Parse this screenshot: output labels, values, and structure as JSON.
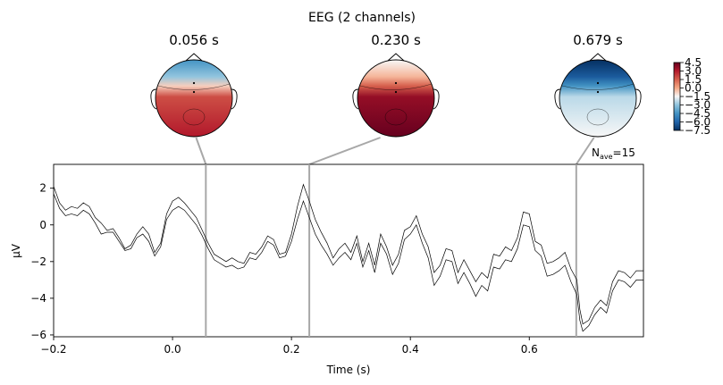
{
  "chart_data": {
    "type": "line",
    "title": "EEG (2 channels)",
    "xlabel": "Time (s)",
    "ylabel": "µV",
    "xlim": [
      -0.2,
      0.792
    ],
    "ylim": [
      -6.1,
      3.3
    ],
    "x_ticks": [
      -0.2,
      0.0,
      0.2,
      0.4,
      0.6
    ],
    "x_tick_labels": [
      "−0.2",
      "0.0",
      "0.2",
      "0.4",
      "0.6"
    ],
    "y_ticks": [
      2,
      0,
      -2,
      -4,
      -6
    ],
    "y_tick_labels": [
      "2",
      "0",
      "−2",
      "−4",
      "−6"
    ],
    "grid": false,
    "nave_label": "N",
    "nave_sub": "ave",
    "nave_value": "=15",
    "line_color": "#000000",
    "marker_line_color": "#a8a8a8",
    "series": [
      {
        "points": [
          [
            -0.2,
            2.1
          ],
          [
            -0.19,
            1.2
          ],
          [
            -0.18,
            0.8
          ],
          [
            -0.17,
            1.0
          ],
          [
            -0.16,
            0.9
          ],
          [
            -0.15,
            1.2
          ],
          [
            -0.14,
            1.0
          ],
          [
            -0.13,
            0.4
          ],
          [
            -0.12,
            0.1
          ],
          [
            -0.11,
            -0.3
          ],
          [
            -0.1,
            -0.2
          ],
          [
            -0.09,
            -0.7
          ],
          [
            -0.08,
            -1.3
          ],
          [
            -0.07,
            -1.1
          ],
          [
            -0.06,
            -0.5
          ],
          [
            -0.05,
            -0.1
          ],
          [
            -0.04,
            -0.5
          ],
          [
            -0.03,
            -1.5
          ],
          [
            -0.02,
            -1.0
          ],
          [
            -0.01,
            0.6
          ],
          [
            0.0,
            1.3
          ],
          [
            0.01,
            1.5
          ],
          [
            0.02,
            1.2
          ],
          [
            0.03,
            0.8
          ],
          [
            0.04,
            0.4
          ],
          [
            0.05,
            -0.3
          ],
          [
            0.06,
            -1.0
          ],
          [
            0.07,
            -1.6
          ],
          [
            0.08,
            -1.8
          ],
          [
            0.09,
            -2.0
          ],
          [
            0.1,
            -1.8
          ],
          [
            0.11,
            -2.0
          ],
          [
            0.12,
            -2.1
          ],
          [
            0.13,
            -1.5
          ],
          [
            0.14,
            -1.6
          ],
          [
            0.15,
            -1.2
          ],
          [
            0.16,
            -0.6
          ],
          [
            0.17,
            -0.8
          ],
          [
            0.18,
            -1.6
          ],
          [
            0.19,
            -1.5
          ],
          [
            0.2,
            -0.5
          ],
          [
            0.21,
            1.0
          ],
          [
            0.22,
            2.2
          ],
          [
            0.23,
            1.3
          ],
          [
            0.24,
            0.3
          ],
          [
            0.25,
            -0.4
          ],
          [
            0.26,
            -1.0
          ],
          [
            0.27,
            -1.8
          ],
          [
            0.28,
            -1.3
          ],
          [
            0.29,
            -1.0
          ],
          [
            0.3,
            -1.5
          ],
          [
            0.31,
            -0.6
          ],
          [
            0.32,
            -2.0
          ],
          [
            0.33,
            -1.0
          ],
          [
            0.34,
            -2.2
          ],
          [
            0.35,
            -0.5
          ],
          [
            0.36,
            -1.2
          ],
          [
            0.37,
            -2.2
          ],
          [
            0.38,
            -1.6
          ],
          [
            0.39,
            -0.3
          ],
          [
            0.4,
            -0.1
          ],
          [
            0.41,
            0.5
          ],
          [
            0.42,
            -0.5
          ],
          [
            0.43,
            -1.2
          ],
          [
            0.44,
            -2.6
          ],
          [
            0.45,
            -2.2
          ],
          [
            0.46,
            -1.3
          ],
          [
            0.47,
            -1.4
          ],
          [
            0.48,
            -2.6
          ],
          [
            0.49,
            -1.9
          ],
          [
            0.5,
            -2.5
          ],
          [
            0.51,
            -3.1
          ],
          [
            0.52,
            -2.6
          ],
          [
            0.53,
            -2.9
          ],
          [
            0.54,
            -1.6
          ],
          [
            0.55,
            -1.7
          ],
          [
            0.56,
            -1.2
          ],
          [
            0.57,
            -1.4
          ],
          [
            0.58,
            -0.7
          ],
          [
            0.59,
            0.7
          ],
          [
            0.6,
            0.6
          ],
          [
            0.61,
            -0.9
          ],
          [
            0.62,
            -1.1
          ],
          [
            0.63,
            -2.1
          ],
          [
            0.64,
            -2.0
          ],
          [
            0.65,
            -1.8
          ],
          [
            0.66,
            -1.5
          ],
          [
            0.67,
            -2.4
          ],
          [
            0.68,
            -3.0
          ],
          [
            0.685,
            -4.6
          ],
          [
            0.69,
            -5.4
          ],
          [
            0.7,
            -5.2
          ],
          [
            0.71,
            -4.5
          ],
          [
            0.72,
            -4.1
          ],
          [
            0.73,
            -4.4
          ],
          [
            0.74,
            -3.1
          ],
          [
            0.75,
            -2.5
          ],
          [
            0.76,
            -2.6
          ],
          [
            0.77,
            -2.9
          ],
          [
            0.78,
            -2.5
          ],
          [
            0.792,
            -2.5
          ]
        ]
      },
      {
        "points": [
          [
            -0.2,
            1.7
          ],
          [
            -0.19,
            0.9
          ],
          [
            -0.18,
            0.5
          ],
          [
            -0.17,
            0.6
          ],
          [
            -0.16,
            0.5
          ],
          [
            -0.15,
            0.8
          ],
          [
            -0.14,
            0.6
          ],
          [
            -0.13,
            0.1
          ],
          [
            -0.12,
            -0.5
          ],
          [
            -0.11,
            -0.4
          ],
          [
            -0.1,
            -0.4
          ],
          [
            -0.09,
            -0.9
          ],
          [
            -0.08,
            -1.4
          ],
          [
            -0.07,
            -1.3
          ],
          [
            -0.06,
            -0.7
          ],
          [
            -0.05,
            -0.5
          ],
          [
            -0.04,
            -0.9
          ],
          [
            -0.03,
            -1.7
          ],
          [
            -0.02,
            -1.2
          ],
          [
            -0.01,
            0.3
          ],
          [
            0.0,
            0.8
          ],
          [
            0.01,
            1.0
          ],
          [
            0.02,
            0.8
          ],
          [
            0.03,
            0.4
          ],
          [
            0.04,
            0.0
          ],
          [
            0.05,
            -0.6
          ],
          [
            0.06,
            -1.3
          ],
          [
            0.07,
            -1.9
          ],
          [
            0.08,
            -2.1
          ],
          [
            0.09,
            -2.3
          ],
          [
            0.1,
            -2.2
          ],
          [
            0.11,
            -2.4
          ],
          [
            0.12,
            -2.3
          ],
          [
            0.13,
            -1.8
          ],
          [
            0.14,
            -1.9
          ],
          [
            0.15,
            -1.5
          ],
          [
            0.16,
            -0.9
          ],
          [
            0.17,
            -1.1
          ],
          [
            0.18,
            -1.8
          ],
          [
            0.19,
            -1.7
          ],
          [
            0.2,
            -0.9
          ],
          [
            0.21,
            0.3
          ],
          [
            0.22,
            1.3
          ],
          [
            0.23,
            0.4
          ],
          [
            0.24,
            -0.5
          ],
          [
            0.25,
            -1.1
          ],
          [
            0.26,
            -1.6
          ],
          [
            0.27,
            -2.2
          ],
          [
            0.28,
            -1.8
          ],
          [
            0.29,
            -1.5
          ],
          [
            0.3,
            -1.9
          ],
          [
            0.31,
            -1.0
          ],
          [
            0.32,
            -2.3
          ],
          [
            0.33,
            -1.4
          ],
          [
            0.34,
            -2.6
          ],
          [
            0.35,
            -1.0
          ],
          [
            0.36,
            -1.6
          ],
          [
            0.37,
            -2.7
          ],
          [
            0.38,
            -2.1
          ],
          [
            0.39,
            -0.8
          ],
          [
            0.4,
            -0.5
          ],
          [
            0.41,
            0.0
          ],
          [
            0.42,
            -1.0
          ],
          [
            0.43,
            -1.8
          ],
          [
            0.44,
            -3.3
          ],
          [
            0.45,
            -2.8
          ],
          [
            0.46,
            -1.9
          ],
          [
            0.47,
            -2.0
          ],
          [
            0.48,
            -3.2
          ],
          [
            0.49,
            -2.6
          ],
          [
            0.5,
            -3.2
          ],
          [
            0.51,
            -3.9
          ],
          [
            0.52,
            -3.3
          ],
          [
            0.53,
            -3.6
          ],
          [
            0.54,
            -2.3
          ],
          [
            0.55,
            -2.4
          ],
          [
            0.56,
            -1.9
          ],
          [
            0.57,
            -2.0
          ],
          [
            0.58,
            -1.3
          ],
          [
            0.59,
            0.0
          ],
          [
            0.6,
            -0.1
          ],
          [
            0.61,
            -1.4
          ],
          [
            0.62,
            -1.7
          ],
          [
            0.63,
            -2.8
          ],
          [
            0.64,
            -2.7
          ],
          [
            0.65,
            -2.5
          ],
          [
            0.66,
            -2.2
          ],
          [
            0.67,
            -3.1
          ],
          [
            0.68,
            -3.8
          ],
          [
            0.685,
            -5.2
          ],
          [
            0.69,
            -5.8
          ],
          [
            0.7,
            -5.5
          ],
          [
            0.71,
            -4.9
          ],
          [
            0.72,
            -4.5
          ],
          [
            0.73,
            -4.8
          ],
          [
            0.74,
            -3.6
          ],
          [
            0.75,
            -3.0
          ],
          [
            0.76,
            -3.1
          ],
          [
            0.77,
            -3.4
          ],
          [
            0.78,
            -3.0
          ],
          [
            0.792,
            -3.0
          ]
        ]
      }
    ],
    "topomaps": [
      {
        "time": 0.056,
        "label": "0.056 s",
        "front_level": -4.5,
        "back_level": 3.0
      },
      {
        "time": 0.23,
        "label": "0.230 s",
        "front_level": -1.5,
        "back_level": 4.5
      },
      {
        "time": 0.679,
        "label": "0.679 s",
        "front_level": -7.5,
        "back_level": -1.5
      }
    ],
    "colorbar": {
      "ticks": [
        4.5,
        3.0,
        1.5,
        0.0,
        -1.5,
        -3.0,
        -4.5,
        -6.0,
        -7.5
      ],
      "tick_labels": [
        "4.5",
        "3.0",
        "1.5",
        "0.0",
        "−1.5",
        "−3.0",
        "−4.5",
        "−6.0",
        "−7.5"
      ],
      "vmin": -7.5,
      "vmax": 4.5,
      "colormap": "RdBu_r"
    }
  }
}
